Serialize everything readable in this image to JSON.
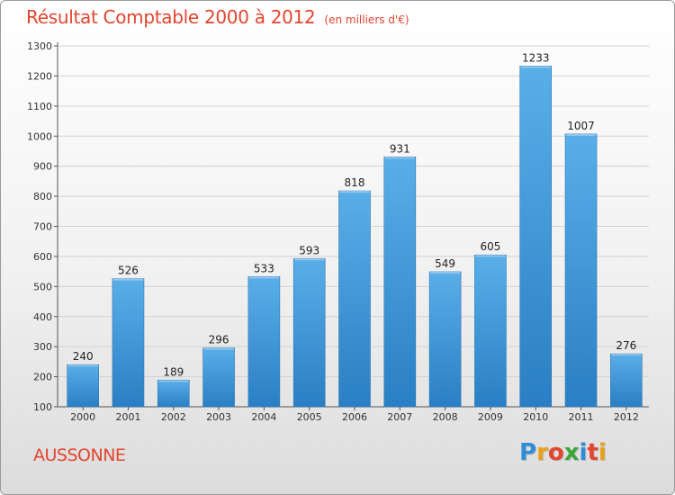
{
  "chart_data": {
    "type": "bar",
    "title": "Résultat Comptable 2000 à 2012",
    "subtitle": "(en milliers d'€)",
    "categories": [
      "2000",
      "2001",
      "2002",
      "2003",
      "2004",
      "2005",
      "2006",
      "2007",
      "2008",
      "2009",
      "2010",
      "2011",
      "2012"
    ],
    "values": [
      240,
      526,
      189,
      296,
      533,
      593,
      818,
      931,
      549,
      605,
      1233,
      1007,
      276
    ],
    "ylim": [
      100,
      1300
    ],
    "yticks": [
      100,
      200,
      300,
      400,
      500,
      600,
      700,
      800,
      900,
      1000,
      1100,
      1200,
      1300
    ],
    "grid": true,
    "xlabel": "",
    "ylabel": ""
  },
  "place": "AUSSONNE",
  "brand": {
    "letters": [
      "P",
      "r",
      "o",
      "x",
      "i",
      "t",
      "i"
    ],
    "colors": [
      "#2e8fd6",
      "#e8a21a",
      "#e3452f",
      "#3aa63a",
      "#2e8fd6",
      "#e3452f",
      "#e8a21a"
    ]
  },
  "colors": {
    "bar_top": "#5aaee8",
    "bar_bottom": "#2a7fc4",
    "accent": "#e3452f",
    "grid": "#d2d2d2",
    "axis": "#555555"
  }
}
